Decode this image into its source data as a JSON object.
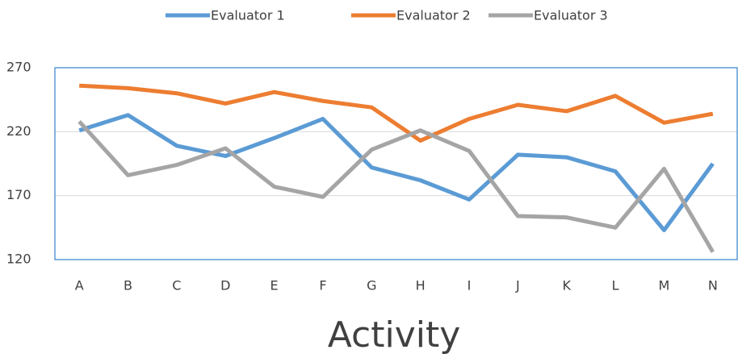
{
  "chart_data": {
    "type": "line",
    "x_label": "Activity",
    "categories": [
      "A",
      "B",
      "C",
      "D",
      "E",
      "F",
      "G",
      "H",
      "I",
      "J",
      "K",
      "L",
      "M",
      "N"
    ],
    "series": [
      {
        "name": "Evaluator 1",
        "color": "#5b9bd5",
        "values": [
          221,
          233,
          209,
          201,
          215,
          230,
          192,
          182,
          167,
          202,
          200,
          189,
          143,
          195
        ]
      },
      {
        "name": "Evaluator 2",
        "color": "#ed7d31",
        "values": [
          256,
          254,
          250,
          242,
          251,
          244,
          239,
          213,
          230,
          241,
          236,
          248,
          227,
          234
        ]
      },
      {
        "name": "Evaluator 3",
        "color": "#a5a5a5",
        "values": [
          228,
          186,
          194,
          207,
          177,
          169,
          206,
          221,
          205,
          154,
          153,
          145,
          191,
          126
        ]
      }
    ],
    "ylim": [
      120,
      270
    ],
    "yticks": [
      120,
      170,
      220,
      270
    ],
    "grid": true,
    "legend": "top"
  }
}
